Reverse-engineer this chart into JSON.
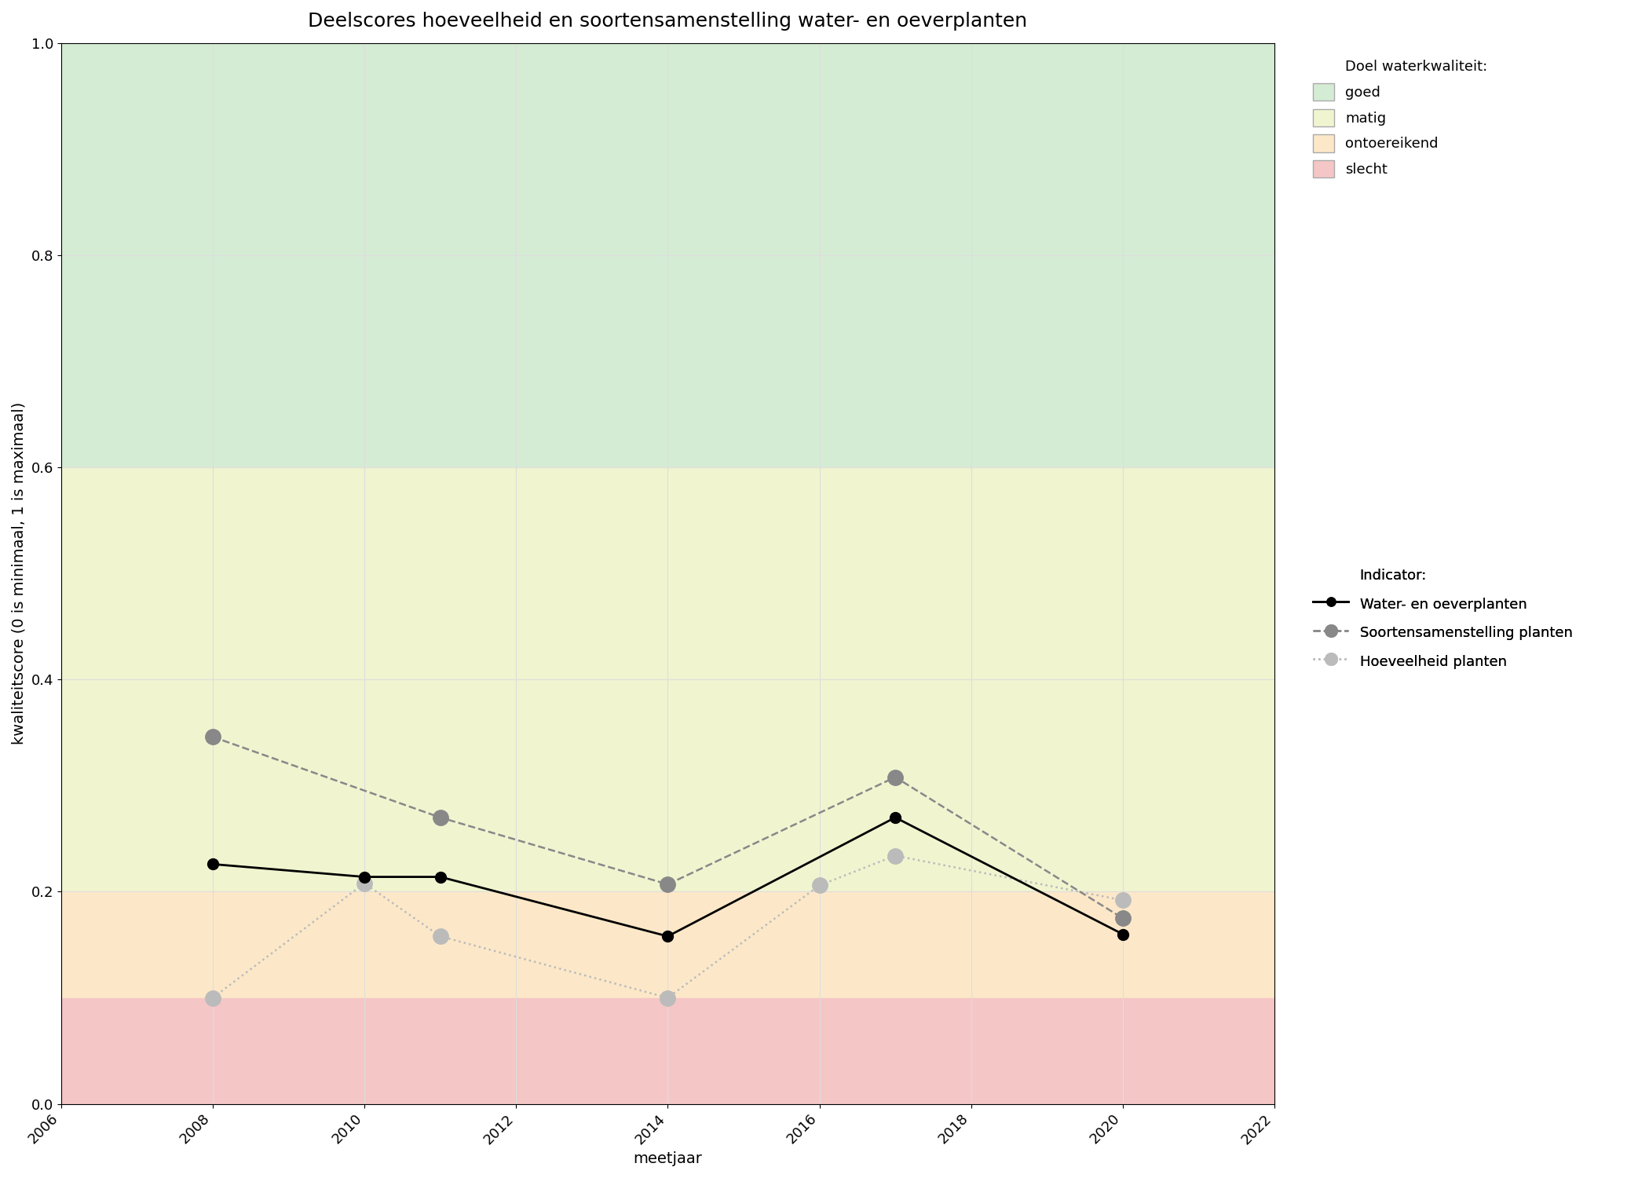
{
  "title": "Deelscores hoeveelheid en soortensamenstelling water- en oeverplanten",
  "xlabel": "meetjaar",
  "ylabel": "kwaliteitscore (0 is minimaal, 1 is maximaal)",
  "xlim": [
    2006,
    2022
  ],
  "ylim": [
    0.0,
    1.0
  ],
  "xticks": [
    2006,
    2008,
    2010,
    2012,
    2014,
    2016,
    2018,
    2020,
    2022
  ],
  "yticks": [
    0.0,
    0.2,
    0.4,
    0.6,
    0.8,
    1.0
  ],
  "bg_color": "#ffffff",
  "plot_bg_color": "#ffffff",
  "quality_bands": {
    "goed": {
      "ymin": 0.6,
      "ymax": 1.0,
      "color": "#d5ecd4"
    },
    "matig": {
      "ymin": 0.2,
      "ymax": 0.6,
      "color": "#f0f5d0"
    },
    "ontoereikend": {
      "ymin": 0.1,
      "ymax": 0.2,
      "color": "#fce8c8"
    },
    "slecht": {
      "ymin": 0.0,
      "ymax": 0.1,
      "color": "#f5c6c6"
    }
  },
  "line_water_oever": {
    "years": [
      2008,
      2010,
      2011,
      2014,
      2017,
      2020
    ],
    "values": [
      0.226,
      0.214,
      0.214,
      0.158,
      0.27,
      0.16
    ],
    "color": "#000000",
    "linestyle": "solid",
    "linewidth": 2.0,
    "markersize": 10,
    "marker": "o",
    "label": "Water- en oeverplanten",
    "zorder": 5
  },
  "line_soorten": {
    "years": [
      2008,
      2011,
      2014,
      2017,
      2020
    ],
    "values": [
      0.346,
      0.27,
      0.207,
      0.308,
      0.175
    ],
    "color": "#888888",
    "linestyle": "dashed",
    "linewidth": 1.8,
    "markersize": 14,
    "marker": "o",
    "label": "Soortensamenstelling planten",
    "zorder": 4
  },
  "line_hoeveelheid": {
    "years": [
      2008,
      2010,
      2011,
      2014,
      2016,
      2017,
      2020
    ],
    "values": [
      0.1,
      0.208,
      0.158,
      0.1,
      0.206,
      0.234,
      0.192
    ],
    "color": "#bbbbbb",
    "linestyle": "dotted",
    "linewidth": 1.8,
    "markersize": 14,
    "marker": "o",
    "label": "Hoeveelheid planten",
    "zorder": 3
  },
  "legend_doel_title": "Doel waterkwaliteit:",
  "legend_doel_items": [
    {
      "label": "goed",
      "color": "#d5ecd4"
    },
    {
      "label": "matig",
      "color": "#f0f5d0"
    },
    {
      "label": "ontoereikend",
      "color": "#fce8c8"
    },
    {
      "label": "slecht",
      "color": "#f5c6c6"
    }
  ],
  "legend_indicator_title": "Indicator:",
  "grid_color": "#dddddd",
  "grid_linewidth": 0.8,
  "title_fontsize": 18,
  "axis_label_fontsize": 14,
  "tick_fontsize": 13,
  "legend_fontsize": 13
}
